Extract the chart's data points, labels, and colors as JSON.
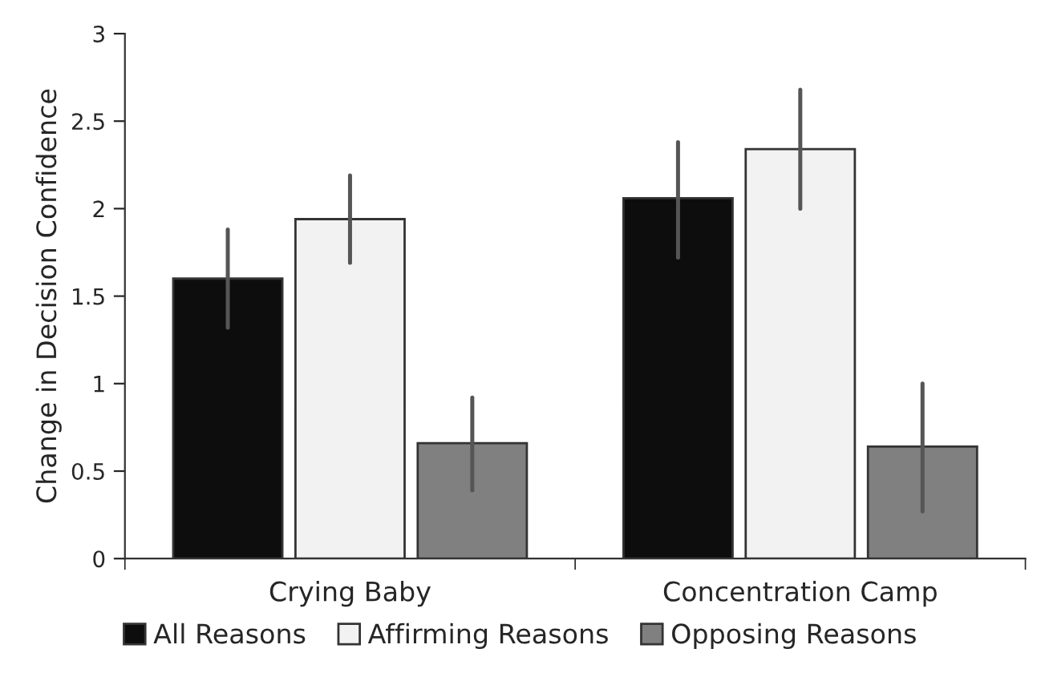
{
  "chart_data": {
    "type": "bar",
    "ylabel": "Change in Decision Confidence",
    "categories": [
      "Crying Baby",
      "Concentration Camp"
    ],
    "series": [
      {
        "name": "All Reasons",
        "color": "#0d0d0d",
        "values": [
          1.6,
          2.06
        ],
        "errors": [
          [
            1.32,
            1.88
          ],
          [
            1.72,
            2.38
          ]
        ]
      },
      {
        "name": "Affirming Reasons",
        "color": "#f2f2f2",
        "values": [
          1.94,
          2.34
        ],
        "errors": [
          [
            1.69,
            2.19
          ],
          [
            2.0,
            2.68
          ]
        ]
      },
      {
        "name": "Opposing Reasons",
        "color": "#808080",
        "values": [
          0.66,
          0.64
        ],
        "errors": [
          [
            0.39,
            0.92
          ],
          [
            0.27,
            1.0
          ]
        ]
      }
    ],
    "ylim": [
      0,
      3
    ],
    "yticks": [
      0,
      0.5,
      1,
      1.5,
      2,
      2.5,
      3
    ],
    "grid": false,
    "legend": "bottom"
  }
}
